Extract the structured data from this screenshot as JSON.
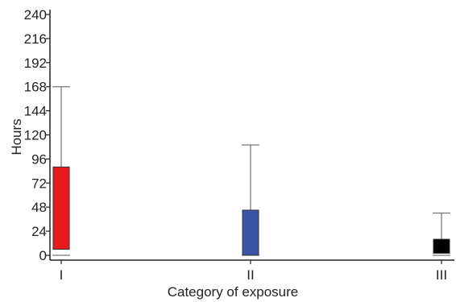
{
  "chart_data": {
    "type": "box",
    "title": "",
    "xlabel": "Category of exposure",
    "ylabel": "Hours",
    "ylim": [
      0,
      240
    ],
    "yticks": [
      0,
      24,
      48,
      72,
      96,
      120,
      144,
      168,
      192,
      216,
      240
    ],
    "categories": [
      "I",
      "II",
      "III"
    ],
    "boxes": [
      {
        "category": "I",
        "whisker_low": 0,
        "q1": 6,
        "q3": 88,
        "whisker_high": 168,
        "color": "#e8191c"
      },
      {
        "category": "II",
        "whisker_low": 0,
        "q1": 0,
        "q3": 45,
        "whisker_high": 110,
        "color": "#3a55a8"
      },
      {
        "category": "III",
        "whisker_low": 0,
        "q1": 2,
        "q3": 16,
        "whisker_high": 42,
        "color": "#000000"
      }
    ],
    "grid": false,
    "legend": "none"
  }
}
